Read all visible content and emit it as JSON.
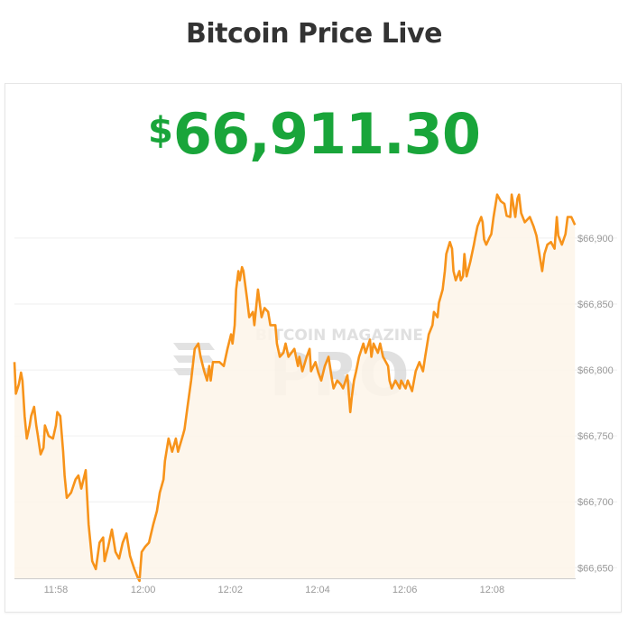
{
  "header": {
    "title": "Bitcoin Price Live"
  },
  "current_price": {
    "currency_symbol": "$",
    "value": "66,911.30",
    "color": "#19a53a"
  },
  "watermark": {
    "line1": "BITCOIN MAGAZINE",
    "line2": "PRO"
  },
  "chart_data": {
    "type": "area",
    "title": "",
    "xlabel": "",
    "ylabel": "",
    "line_color": "#f7931a",
    "fill_color": "#fdf4e9",
    "grid": true,
    "y_axis_position": "right",
    "xlim": [
      "11:57:03",
      "12:09:55"
    ],
    "ylim": [
      66642,
      67019
    ],
    "x_ticks": [
      "11:58",
      "12:00",
      "12:02",
      "12:04",
      "12:06",
      "12:08"
    ],
    "y_ticks": [
      {
        "value": 66650,
        "label": "$66,650"
      },
      {
        "value": 66700,
        "label": "$66,700"
      },
      {
        "value": 66750,
        "label": "$66,750"
      },
      {
        "value": 66800,
        "label": "$66,800"
      },
      {
        "value": 66850,
        "label": "$66,850"
      },
      {
        "value": 66900,
        "label": "$66,900"
      }
    ],
    "series": [
      {
        "points": [
          [
            "11:57:03",
            66806
          ],
          [
            "11:57:05",
            66782
          ],
          [
            "11:57:09",
            66789
          ],
          [
            "11:57:12",
            66798
          ],
          [
            "11:57:14",
            66792
          ],
          [
            "11:57:17",
            66765
          ],
          [
            "11:57:20",
            66748
          ],
          [
            "11:57:24",
            66758
          ],
          [
            "11:57:26",
            66765
          ],
          [
            "11:57:30",
            66772
          ],
          [
            "11:57:33",
            66758
          ],
          [
            "11:57:35",
            66751
          ],
          [
            "11:57:39",
            66736
          ],
          [
            "11:57:43",
            66741
          ],
          [
            "11:57:45",
            66758
          ],
          [
            "11:57:50",
            66750
          ],
          [
            "11:57:56",
            66748
          ],
          [
            "11:58:00",
            66758
          ],
          [
            "11:58:02",
            66768
          ],
          [
            "11:58:06",
            66765
          ],
          [
            "11:58:10",
            66738
          ],
          [
            "11:58:12",
            66720
          ],
          [
            "11:58:15",
            66703
          ],
          [
            "11:58:21",
            66707
          ],
          [
            "11:58:27",
            66717
          ],
          [
            "11:58:31",
            66720
          ],
          [
            "11:58:35",
            66710
          ],
          [
            "11:58:41",
            66724
          ],
          [
            "11:58:45",
            66683
          ],
          [
            "11:58:50",
            66655
          ],
          [
            "11:58:55",
            66649
          ],
          [
            "11:59:00",
            66669
          ],
          [
            "11:59:05",
            66673
          ],
          [
            "11:59:07",
            66655
          ],
          [
            "11:59:12",
            66666
          ],
          [
            "11:59:17",
            66679
          ],
          [
            "11:59:22",
            66662
          ],
          [
            "11:59:27",
            66657
          ],
          [
            "11:59:32",
            66669
          ],
          [
            "11:59:37",
            66676
          ],
          [
            "11:59:42",
            66659
          ],
          [
            "11:59:48",
            66649
          ],
          [
            "11:59:53",
            66642
          ],
          [
            "11:59:55",
            66640
          ],
          [
            "11:59:58",
            66662
          ],
          [
            "12:00:03",
            66666
          ],
          [
            "12:00:08",
            66669
          ],
          [
            "12:00:14",
            66683
          ],
          [
            "12:00:19",
            66693
          ],
          [
            "12:00:23",
            66707
          ],
          [
            "12:00:28",
            66717
          ],
          [
            "12:00:30",
            66731
          ],
          [
            "12:00:35",
            66748
          ],
          [
            "12:00:40",
            66738
          ],
          [
            "12:00:45",
            66748
          ],
          [
            "12:00:48",
            66738
          ],
          [
            "12:00:55",
            66751
          ],
          [
            "12:00:57",
            66755
          ],
          [
            "12:01:01",
            66772
          ],
          [
            "12:01:06",
            66792
          ],
          [
            "12:01:11",
            66816
          ],
          [
            "12:01:16",
            66820
          ],
          [
            "12:01:19",
            66810
          ],
          [
            "12:01:24",
            66799
          ],
          [
            "12:01:28",
            66792
          ],
          [
            "12:01:31",
            66803
          ],
          [
            "12:01:33",
            66792
          ],
          [
            "12:01:36",
            66806
          ],
          [
            "12:01:45",
            66806
          ],
          [
            "12:01:51",
            66803
          ],
          [
            "12:01:56",
            66816
          ],
          [
            "12:02:01",
            66827
          ],
          [
            "12:02:03",
            66820
          ],
          [
            "12:02:06",
            66834
          ],
          [
            "12:02:08",
            66861
          ],
          [
            "12:02:11",
            66875
          ],
          [
            "12:02:13",
            66868
          ],
          [
            "12:02:16",
            66878
          ],
          [
            "12:02:18",
            66875
          ],
          [
            "12:02:23",
            66854
          ],
          [
            "12:02:26",
            66840
          ],
          [
            "12:02:31",
            66844
          ],
          [
            "12:02:33",
            66834
          ],
          [
            "12:02:38",
            66861
          ],
          [
            "12:02:43",
            66840
          ],
          [
            "12:02:47",
            66847
          ],
          [
            "12:02:52",
            66844
          ],
          [
            "12:02:55",
            66834
          ],
          [
            "12:03:02",
            66834
          ],
          [
            "12:03:04",
            66820
          ],
          [
            "12:03:08",
            66810
          ],
          [
            "12:03:13",
            66813
          ],
          [
            "12:03:16",
            66820
          ],
          [
            "12:03:20",
            66810
          ],
          [
            "12:03:28",
            66816
          ],
          [
            "12:03:33",
            66803
          ],
          [
            "12:03:35",
            66810
          ],
          [
            "12:03:39",
            66799
          ],
          [
            "12:03:45",
            66810
          ],
          [
            "12:03:49",
            66816
          ],
          [
            "12:03:51",
            66799
          ],
          [
            "12:03:57",
            66806
          ],
          [
            "12:04:01",
            66798
          ],
          [
            "12:04:05",
            66792
          ],
          [
            "12:04:10",
            66803
          ],
          [
            "12:04:15",
            66810
          ],
          [
            "12:04:20",
            66792
          ],
          [
            "12:04:22",
            66786
          ],
          [
            "12:04:27",
            66792
          ],
          [
            "12:04:32",
            66789
          ],
          [
            "12:04:35",
            66786
          ],
          [
            "12:04:41",
            66796
          ],
          [
            "12:04:45",
            66768
          ],
          [
            "12:04:47",
            66779
          ],
          [
            "12:04:50",
            66792
          ],
          [
            "12:04:53",
            66799
          ],
          [
            "12:04:57",
            66810
          ],
          [
            "12:05:03",
            66820
          ],
          [
            "12:05:06",
            66813
          ],
          [
            "12:05:12",
            66823
          ],
          [
            "12:05:14",
            66810
          ],
          [
            "12:05:17",
            66820
          ],
          [
            "12:05:23",
            66813
          ],
          [
            "12:05:26",
            66820
          ],
          [
            "12:05:30",
            66810
          ],
          [
            "12:05:37",
            66803
          ],
          [
            "12:05:39",
            66792
          ],
          [
            "12:05:42",
            66786
          ],
          [
            "12:05:47",
            66792
          ],
          [
            "12:05:53",
            66786
          ],
          [
            "12:05:55",
            66792
          ],
          [
            "12:06:01",
            66786
          ],
          [
            "12:06:04",
            66792
          ],
          [
            "12:06:10",
            66784
          ],
          [
            "12:06:15",
            66799
          ],
          [
            "12:06:20",
            66806
          ],
          [
            "12:06:25",
            66799
          ],
          [
            "12:06:28",
            66810
          ],
          [
            "12:06:33",
            66827
          ],
          [
            "12:06:38",
            66834
          ],
          [
            "12:06:40",
            66844
          ],
          [
            "12:06:45",
            66840
          ],
          [
            "12:06:47",
            66851
          ],
          [
            "12:06:52",
            66861
          ],
          [
            "12:06:55",
            66875
          ],
          [
            "12:06:57",
            66888
          ],
          [
            "12:07:02",
            66897
          ],
          [
            "12:07:05",
            66892
          ],
          [
            "12:07:07",
            66875
          ],
          [
            "12:07:10",
            66868
          ],
          [
            "12:07:15",
            66875
          ],
          [
            "12:07:17",
            66868
          ],
          [
            "12:07:20",
            66871
          ],
          [
            "12:07:22",
            66888
          ],
          [
            "12:07:25",
            66871
          ],
          [
            "12:07:30",
            66882
          ],
          [
            "12:07:35",
            66895
          ],
          [
            "12:07:37",
            66901
          ],
          [
            "12:07:40",
            66909
          ],
          [
            "12:07:45",
            66916
          ],
          [
            "12:07:47",
            66912
          ],
          [
            "12:07:49",
            66899
          ],
          [
            "12:07:52",
            66895
          ],
          [
            "12:07:57",
            66901
          ],
          [
            "12:07:59",
            66903
          ],
          [
            "12:08:02",
            66916
          ],
          [
            "12:08:07",
            66933
          ],
          [
            "12:08:12",
            66928
          ],
          [
            "12:08:17",
            66926
          ],
          [
            "12:08:20",
            66917
          ],
          [
            "12:08:25",
            66916
          ],
          [
            "12:08:27",
            66933
          ],
          [
            "12:08:32",
            66916
          ],
          [
            "12:08:35",
            66930
          ],
          [
            "12:08:37",
            66933
          ],
          [
            "12:08:40",
            66919
          ],
          [
            "12:08:45",
            66912
          ],
          [
            "12:08:52",
            66916
          ],
          [
            "12:08:57",
            66909
          ],
          [
            "12:09:01",
            66902
          ],
          [
            "12:09:04",
            66892
          ],
          [
            "12:09:06",
            66885
          ],
          [
            "12:09:09",
            66875
          ],
          [
            "12:09:12",
            66888
          ],
          [
            "12:09:16",
            66895
          ],
          [
            "12:09:21",
            66897
          ],
          [
            "12:09:26",
            66892
          ],
          [
            "12:09:29",
            66916
          ],
          [
            "12:09:31",
            66902
          ],
          [
            "12:09:36",
            66895
          ],
          [
            "12:09:41",
            66903
          ],
          [
            "12:09:44",
            66916
          ],
          [
            "12:09:49",
            66916
          ],
          [
            "12:09:54",
            66910
          ]
        ]
      }
    ]
  }
}
